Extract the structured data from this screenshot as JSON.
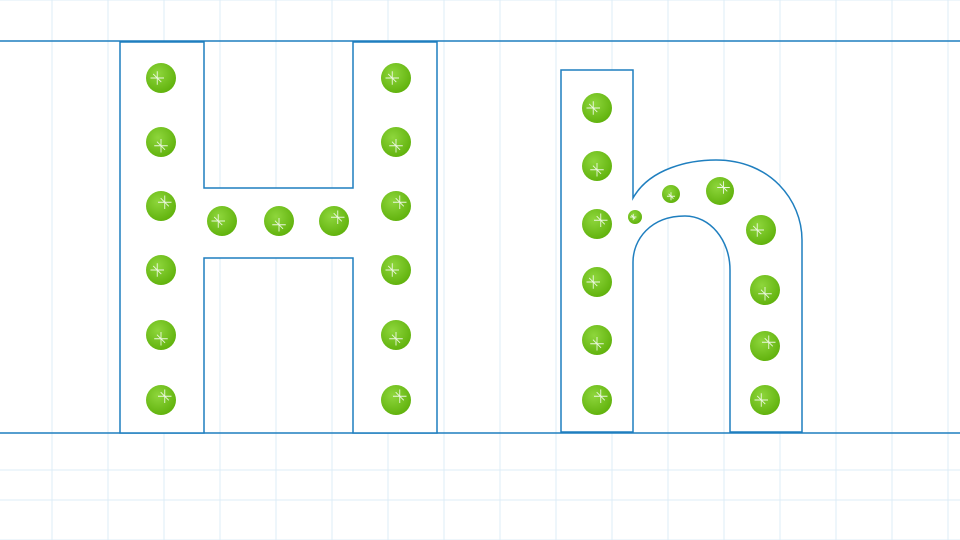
{
  "worksheet": {
    "letters": [
      {
        "glyph": "H",
        "case": "uppercase"
      },
      {
        "glyph": "h",
        "case": "lowercase"
      }
    ],
    "colors": {
      "outline": "#1f7fbf",
      "guide_line": "#1f7fbf",
      "grid": "#dcecf7",
      "dot": "#6cbf14",
      "dot_highlight": "#9de05a",
      "sparkle": "#ffffff",
      "background": "#ffffff"
    },
    "icons": {
      "tracing_dot": "green-tracing-dot-icon"
    }
  }
}
